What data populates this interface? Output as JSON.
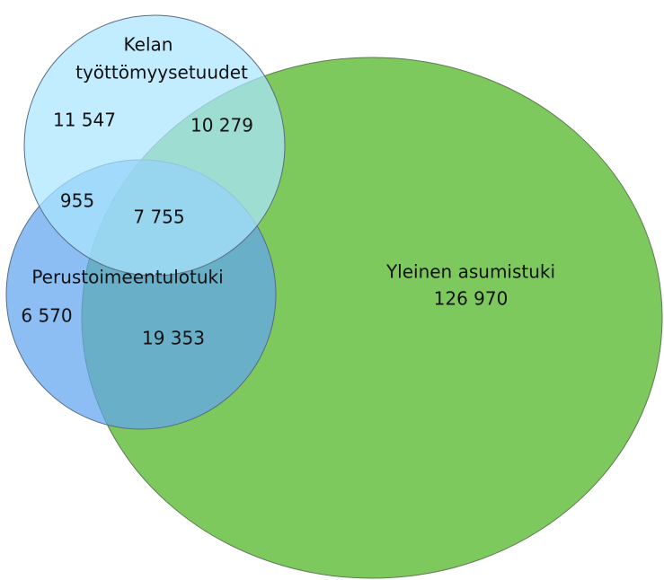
{
  "sets": [
    {
      "label": [
        "Kelan",
        "työttömyysetuudet"
      ]
    },
    {
      "label": [
        "Perustoimeentulotuki"
      ]
    },
    {
      "label": [
        "Yleinen asumistuki"
      ]
    }
  ],
  "regions": [
    "11 547",
    "10 279",
    "955",
    "7 755",
    "6 570",
    "19 353",
    "126 970"
  ]
}
